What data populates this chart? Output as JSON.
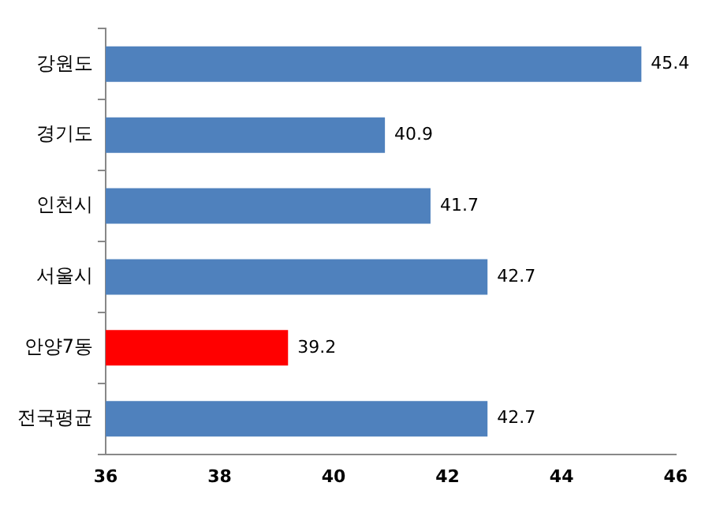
{
  "chart_data": {
    "type": "bar",
    "orientation": "horizontal",
    "categories": [
      "강원도",
      "경기도",
      "인천시",
      "서울시",
      "안양7동",
      "전국평균"
    ],
    "values": [
      45.4,
      40.9,
      41.7,
      42.7,
      39.2,
      42.7
    ],
    "colors": [
      "#4f81bd",
      "#4f81bd",
      "#4f81bd",
      "#4f81bd",
      "#ff0000",
      "#4f81bd"
    ],
    "xlim": [
      36,
      46
    ],
    "xticks": [
      36,
      38,
      40,
      42,
      44,
      46
    ],
    "grid": false,
    "legend": false,
    "data_labels": true
  }
}
